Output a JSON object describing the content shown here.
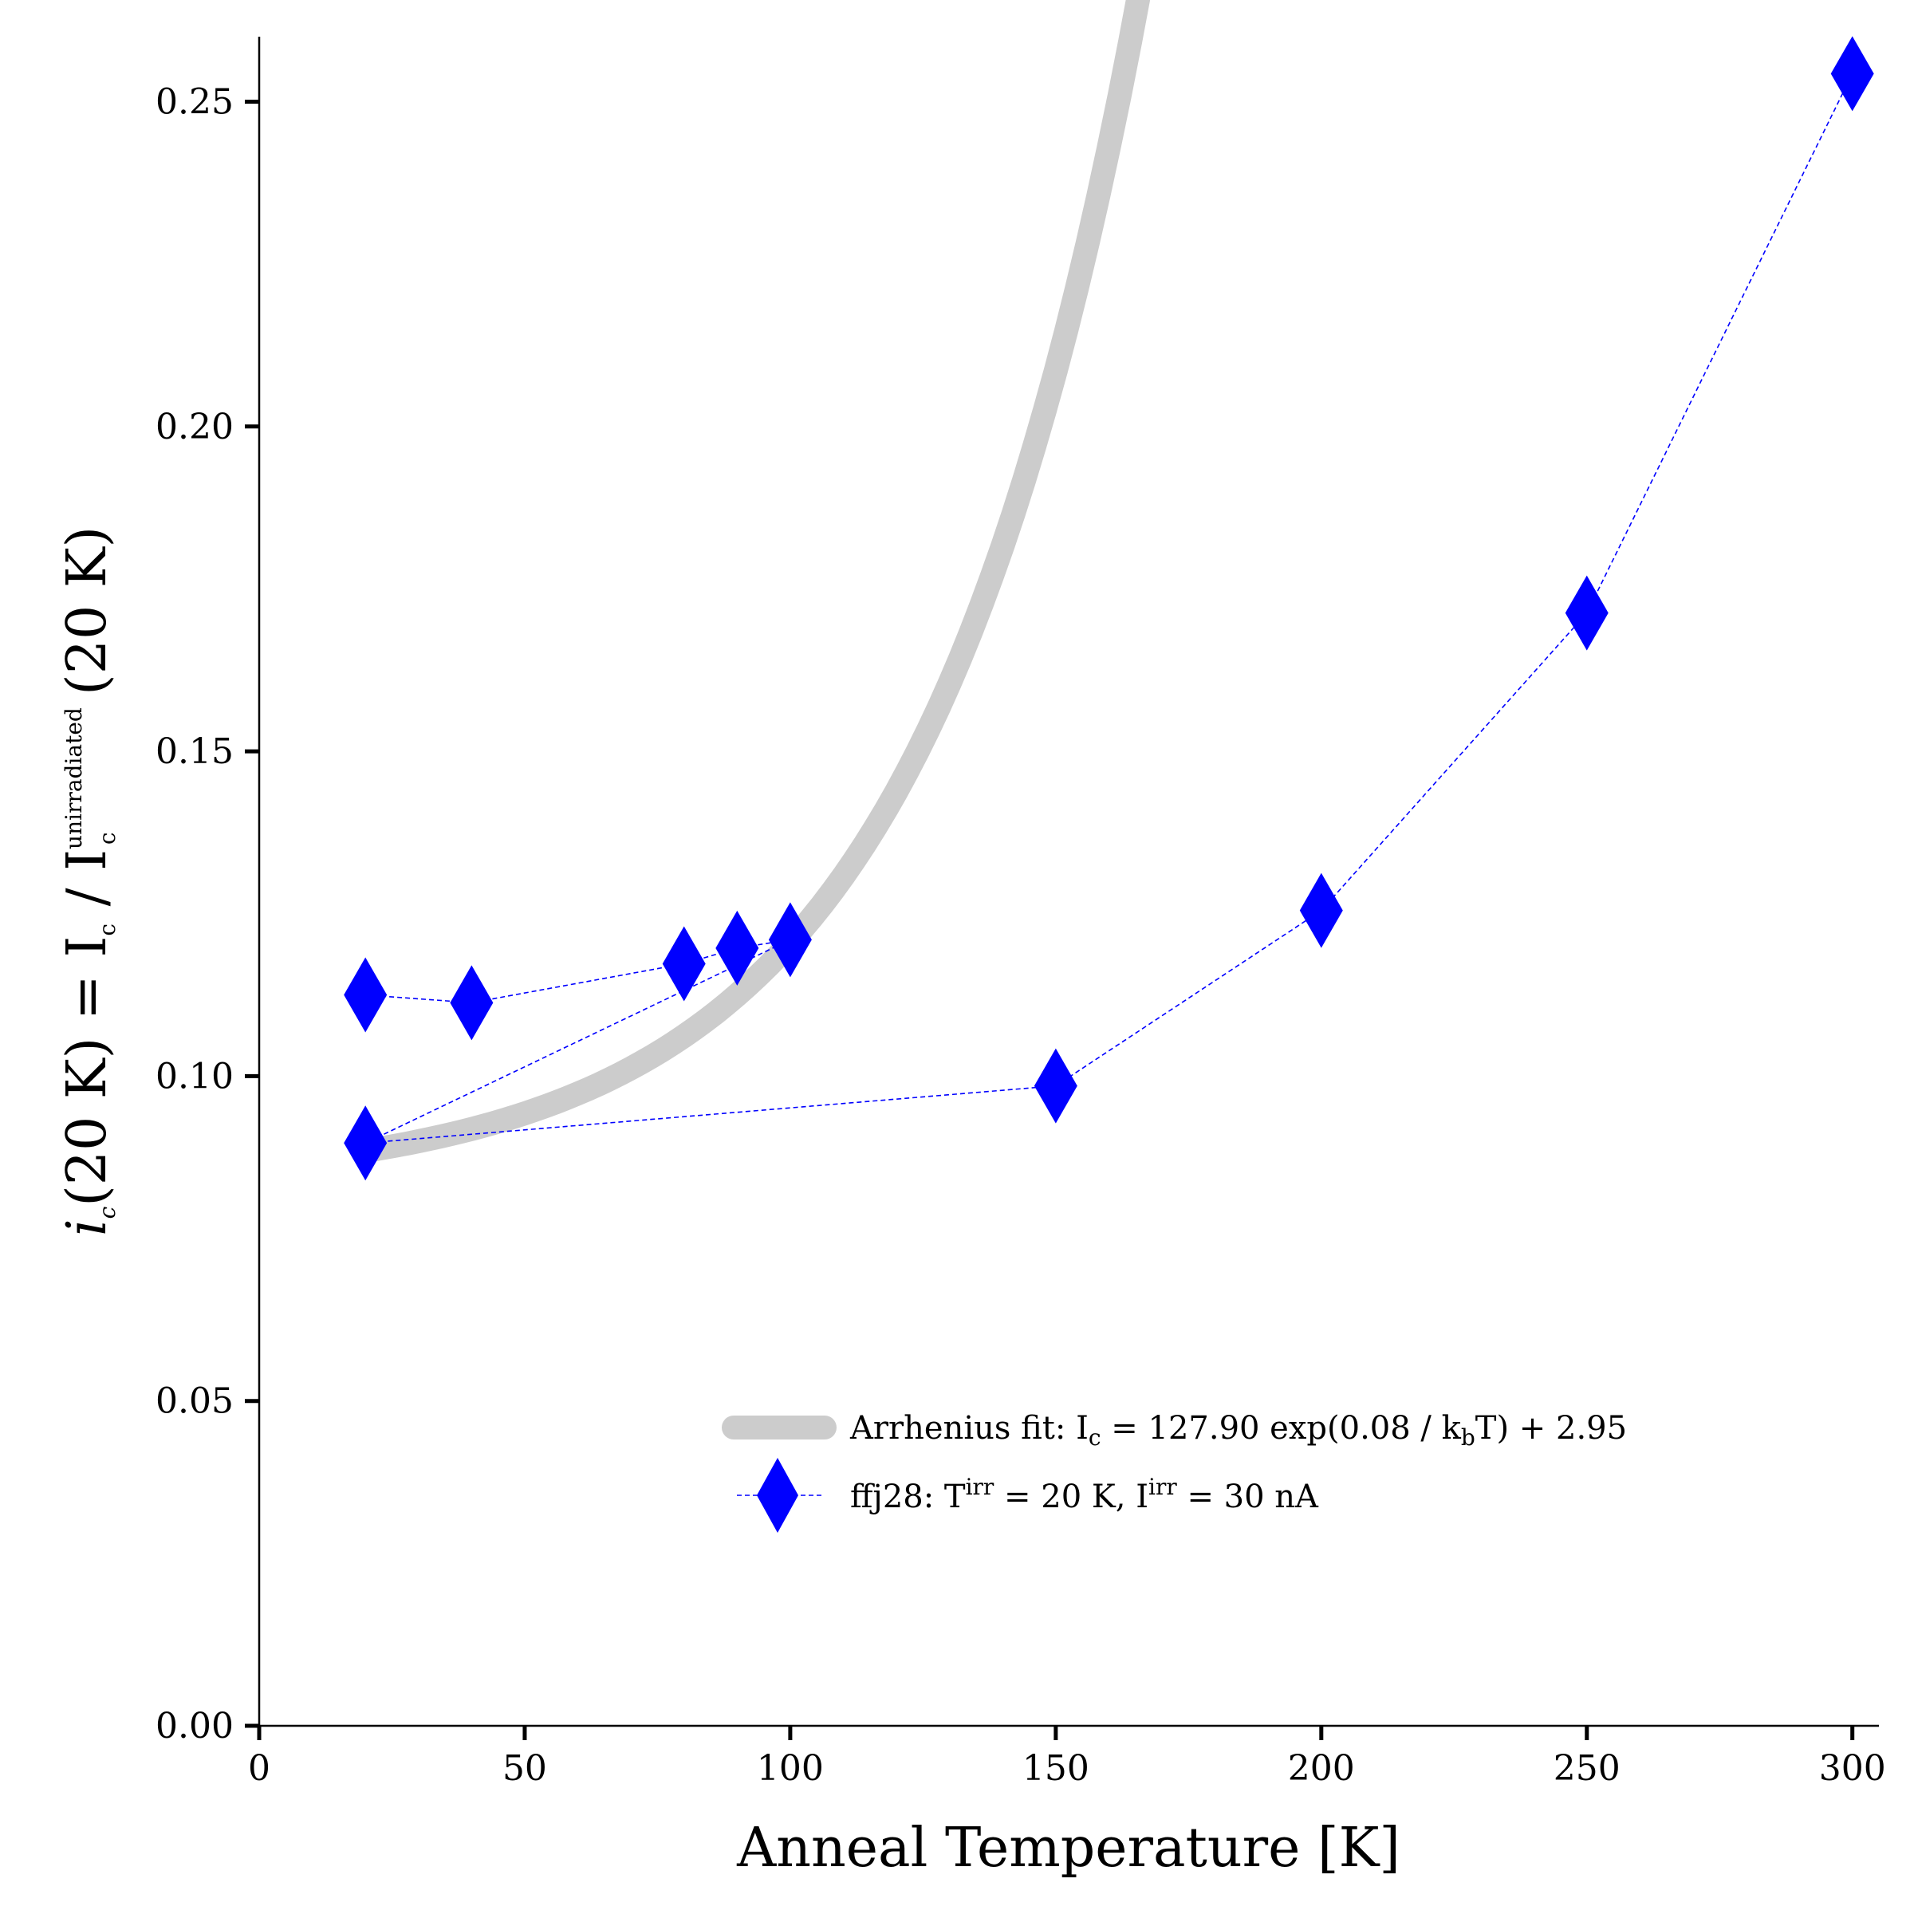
{
  "chart_data": {
    "type": "scatter",
    "xlabel": "Anneal Temperature [K]",
    "ylabel": {
      "lhs": "i",
      "lhs_sub": "c",
      "lhs_arg": "(20 K) = I",
      "num_sub": "c",
      "slash": " / I",
      "den_sub": "c",
      "den_sup": "unirradiated",
      "tail": " (20 K)"
    },
    "xlim": [
      0,
      305
    ],
    "ylim": [
      0,
      0.26
    ],
    "xticks": [
      0,
      50,
      100,
      150,
      200,
      250,
      300
    ],
    "xtick_labels": [
      "0",
      "50",
      "100",
      "150",
      "200",
      "250",
      "300"
    ],
    "yticks": [
      0,
      0.05,
      0.1,
      0.15,
      0.2,
      0.25
    ],
    "ytick_labels": [
      "0.00",
      "0.05",
      "0.10",
      "0.15",
      "0.20",
      "0.25"
    ],
    "legend_position": "lower-right",
    "series": [
      {
        "kind": "fit-line",
        "color": "#cccccc",
        "label": {
          "a": "Arrhenius fit: I",
          "a_sub": "c",
          "b": " = 127.90 exp(0.08 / k",
          "b_sub": "b",
          "c": "T) + 2.95"
        },
        "model": {
          "baseline": 0.0885,
          "amplitude": 0.0054,
          "rate": 0.0242,
          "x_ref": 20
        },
        "x_range": [
          20,
          300
        ]
      },
      {
        "kind": "markers",
        "color": "#0000ff",
        "marker": "diamond",
        "linestyle": "dashed",
        "label": {
          "a": "ffj28: T",
          "a_sup": "irr",
          "b": " = 20 K, I",
          "b_sup": "irr",
          "c": " = 30 nA"
        },
        "x": [
          20,
          40,
          80,
          90,
          100,
          20,
          150,
          200,
          250,
          300
        ],
        "y": [
          0.1125,
          0.1113,
          0.1173,
          0.1197,
          0.121,
          0.0897,
          0.0985,
          0.1255,
          0.1713,
          0.2543
        ],
        "path": [
          [
            20,
            0.1125
          ],
          [
            40,
            0.1113
          ],
          [
            80,
            0.1173
          ],
          [
            90,
            0.1197
          ],
          [
            100,
            0.121
          ],
          [
            20,
            0.0897
          ],
          [
            150,
            0.0985
          ],
          [
            200,
            0.1255
          ],
          [
            250,
            0.1713
          ],
          [
            300,
            0.2543
          ]
        ]
      }
    ]
  }
}
